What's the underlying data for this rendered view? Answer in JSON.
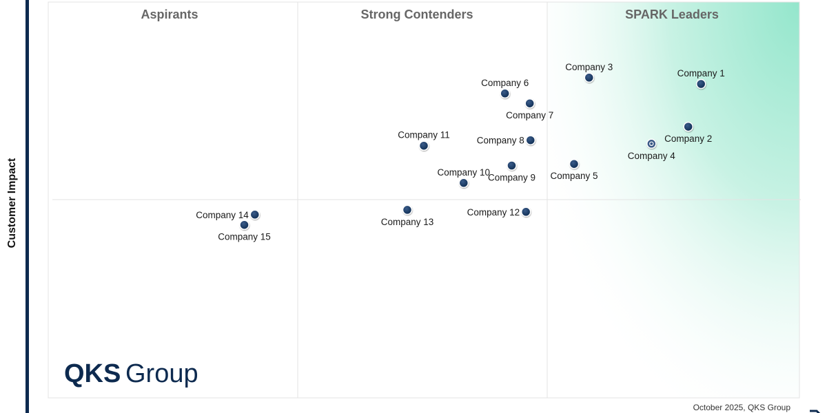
{
  "chart_data": {
    "type": "scatter",
    "ylabel": "Customer Impact",
    "xlim": [
      0,
      100
    ],
    "ylim": [
      0,
      100
    ],
    "quadrants": {
      "aspirants": "Aspirants",
      "strong_contenders": "Strong Contenders",
      "spark_leaders": "SPARK Leaders"
    },
    "points": [
      {
        "label": "Company 1",
        "x": 86.9,
        "y": 79.3,
        "label_pos": "above"
      },
      {
        "label": "Company 2",
        "x": 85.2,
        "y": 68.5,
        "label_pos": "below"
      },
      {
        "label": "Company 3",
        "x": 72.0,
        "y": 80.9,
        "label_pos": "above"
      },
      {
        "label": "Company 4",
        "x": 80.3,
        "y": 64.2,
        "label_pos": "below",
        "highlight": true
      },
      {
        "label": "Company 5",
        "x": 70.0,
        "y": 59.1,
        "label_pos": "below"
      },
      {
        "label": "Company 6",
        "x": 60.8,
        "y": 76.9,
        "label_pos": "above"
      },
      {
        "label": "Company 7",
        "x": 64.1,
        "y": 74.4,
        "label_pos": "below"
      },
      {
        "label": "Company 8",
        "x": 64.2,
        "y": 65.1,
        "label_pos": "left"
      },
      {
        "label": "Company 9",
        "x": 61.7,
        "y": 58.7,
        "label_pos": "below"
      },
      {
        "label": "Company 10",
        "x": 55.3,
        "y": 54.3,
        "label_pos": "above"
      },
      {
        "label": "Company 11",
        "x": 50.0,
        "y": 63.7,
        "label_pos": "above"
      },
      {
        "label": "Company 12",
        "x": 63.6,
        "y": 47.0,
        "label_pos": "left"
      },
      {
        "label": "Company 13",
        "x": 47.8,
        "y": 47.5,
        "label_pos": "below"
      },
      {
        "label": "Company 14",
        "x": 27.5,
        "y": 46.3,
        "label_pos": "left"
      },
      {
        "label": "Company 15",
        "x": 26.1,
        "y": 43.7,
        "label_pos": "below"
      }
    ]
  },
  "logo": {
    "qks": "QKS",
    "group": "Group"
  },
  "footer": {
    "note": "October 2025, QKS Group"
  },
  "colors": {
    "dot": "#0d2a4f",
    "highlight_dot": "#3b5a86",
    "spark_gradient": "#a8ecd6",
    "axis_bar": "#0d2a4f"
  }
}
